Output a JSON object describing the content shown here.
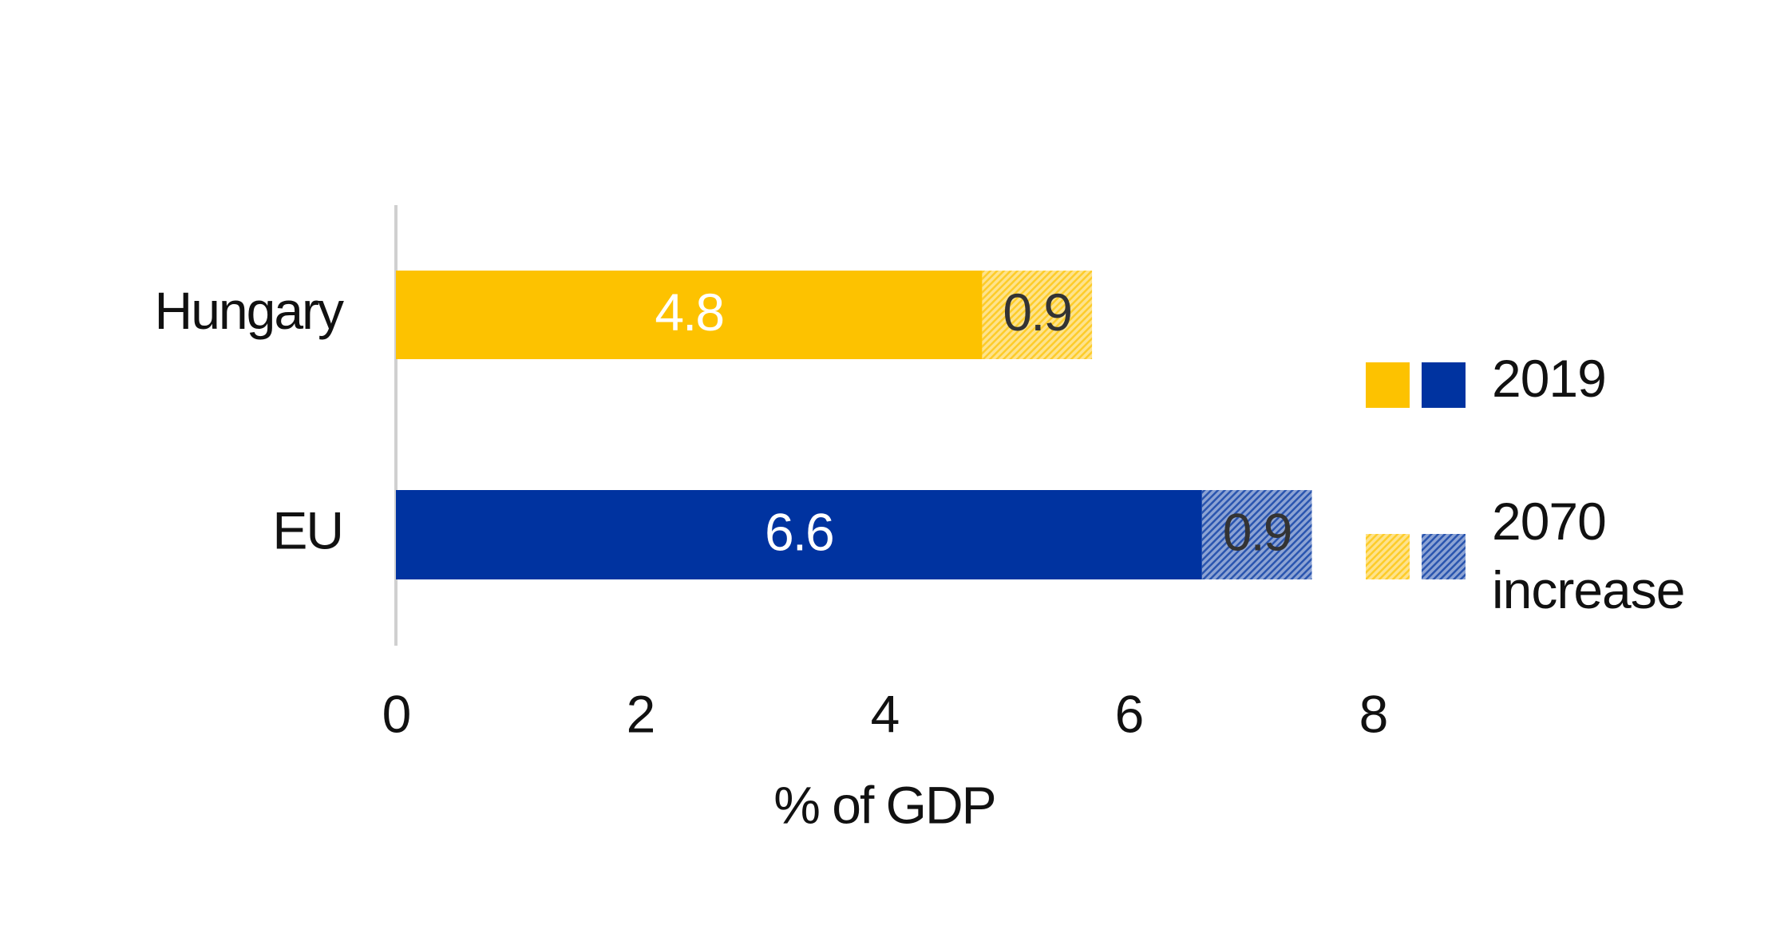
{
  "chart_data": {
    "type": "stacked-bar-horizontal",
    "categories": [
      "Hungary",
      "EU"
    ],
    "series": [
      {
        "name": "2019",
        "colors": [
          "#FDC200",
          "#0033A0"
        ],
        "values": [
          4.8,
          6.6
        ],
        "label_color": "#ffffff"
      },
      {
        "name": "2070 increase",
        "colors": [
          "#FDC200",
          "#0033A0"
        ],
        "pattern": "hatch",
        "values": [
          0.9,
          0.9
        ],
        "label_color": "#333333"
      }
    ],
    "xlabel": "% of GDP",
    "xlim": [
      0,
      8
    ],
    "xticks": [
      0,
      2,
      4,
      6,
      8
    ],
    "grid": false
  }
}
